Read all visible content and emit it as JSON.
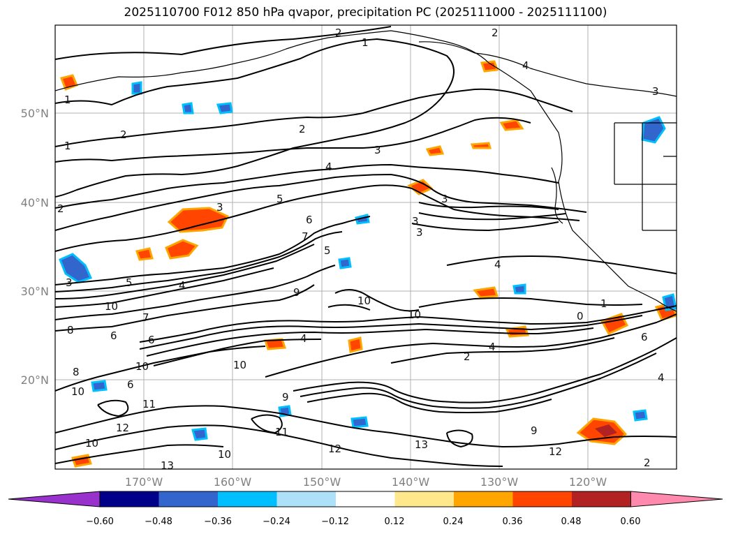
{
  "title": "2025110700 F012 850 hPa qvapor, precipitation PC (2025111000 - 2025111100)",
  "lat_labels": [
    "50°N",
    "40°N",
    "30°N",
    "20°N"
  ],
  "lon_labels": [
    "170°W",
    "160°W",
    "150°W",
    "140°W",
    "130°W",
    "120°W"
  ],
  "colorbar": {
    "ticks": [
      "−0.60",
      "−0.48",
      "−0.36",
      "−0.24",
      "−0.12",
      "0.12",
      "0.24",
      "0.36",
      "0.48",
      "0.60"
    ],
    "colors": [
      "#9932CC",
      "#00008B",
      "#3366CC",
      "#00BFFF",
      "#ADE1FA",
      "#FFFFFF",
      "#FFE88C",
      "#FFA500",
      "#FF4500",
      "#B22222",
      "#FF8AAE"
    ]
  },
  "contour_labels": [
    "2",
    "1",
    "2",
    "4",
    "3",
    "1",
    "2",
    "1",
    "2",
    "3",
    "4",
    "3",
    "2",
    "3",
    "5",
    "6",
    "7",
    "3",
    "3",
    "4",
    "5",
    "4",
    "3",
    "5",
    "4",
    "10",
    "9",
    "10",
    "7",
    "6",
    "8",
    "6",
    "4",
    "10",
    "2",
    "1",
    "0",
    "6",
    "10",
    "8",
    "6",
    "9",
    "10",
    "11",
    "12",
    "10",
    "13",
    "13",
    "12",
    "12",
    "9",
    "11",
    "10",
    "10",
    "4",
    "2"
  ]
}
